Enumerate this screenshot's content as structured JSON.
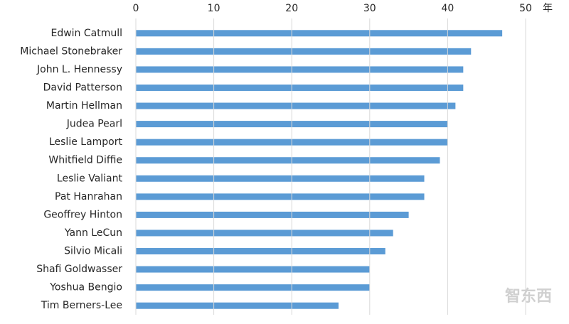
{
  "chart_data": {
    "type": "bar",
    "orientation": "horizontal",
    "categories": [
      "Edwin Catmull",
      "Michael Stonebraker",
      "John L. Hennessy",
      "David Patterson",
      "Martin Hellman",
      "Judea Pearl",
      "Leslie Lamport",
      "Whitfield Diffie",
      "Leslie Valiant",
      "Pat Hanrahan",
      "Geoffrey Hinton",
      "Yann LeCun",
      "Silvio Micali",
      "Shafi Goldwasser",
      "Yoshua Bengio",
      "Tim Berners-Lee"
    ],
    "values": [
      47,
      43,
      42,
      42,
      41,
      40,
      40,
      39,
      37,
      37,
      35,
      33,
      32,
      30,
      30,
      26
    ],
    "color": "#5b9bd5",
    "xlim": [
      0,
      50
    ],
    "xticks": [
      0,
      10,
      20,
      30,
      40,
      50
    ],
    "x_unit": "年",
    "grid": true,
    "watermark": "智东西"
  }
}
